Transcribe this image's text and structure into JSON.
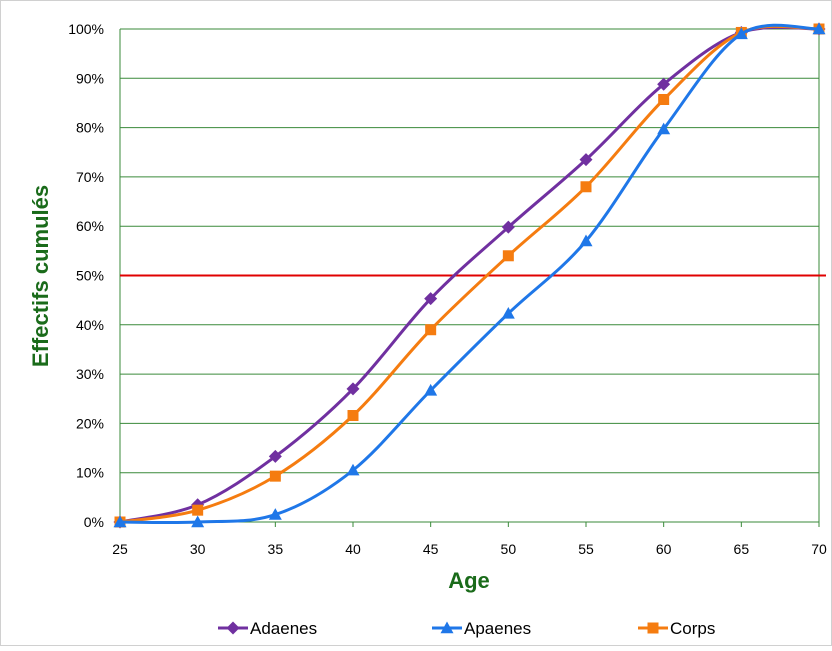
{
  "colors": {
    "adaenes": "#7030a0",
    "apaenes": "#1f77e8",
    "corps": "#f57c10",
    "gridline": "#3a8a3a",
    "reference_line": "#e00000",
    "axis_title": "#1a6b1a"
  },
  "chart_data": {
    "type": "line",
    "title": "",
    "xlabel": "Age",
    "ylabel": "Effectifs cumulés",
    "x": [
      25,
      30,
      35,
      40,
      45,
      50,
      55,
      60,
      65,
      70
    ],
    "x_ticks": [
      "25",
      "30",
      "35",
      "40",
      "45",
      "50",
      "55",
      "60",
      "65",
      "70"
    ],
    "xlim": [
      25,
      70
    ],
    "ylim": [
      0,
      100
    ],
    "y_ticks": [
      "0%",
      "10%",
      "20%",
      "30%",
      "40%",
      "50%",
      "60%",
      "70%",
      "80%",
      "90%",
      "100%"
    ],
    "grid": true,
    "smooth": true,
    "legend_position": "bottom",
    "reference_line": {
      "y": 50
    },
    "series": [
      {
        "name": "Adaenes",
        "marker": "diamond",
        "color": "#7030a0",
        "values": [
          0,
          3.5,
          13.3,
          27,
          45.3,
          59.8,
          73.5,
          88.8,
          99.3,
          100
        ]
      },
      {
        "name": "Apaenes",
        "marker": "triangle",
        "color": "#1f77e8",
        "values": [
          0,
          0,
          1.5,
          10.5,
          26.7,
          42.3,
          57,
          79.7,
          99,
          100
        ]
      },
      {
        "name": "Corps",
        "marker": "square",
        "color": "#f57c10",
        "values": [
          0,
          2.4,
          9.3,
          21.6,
          39,
          54,
          68,
          85.7,
          99.3,
          100
        ]
      }
    ]
  }
}
